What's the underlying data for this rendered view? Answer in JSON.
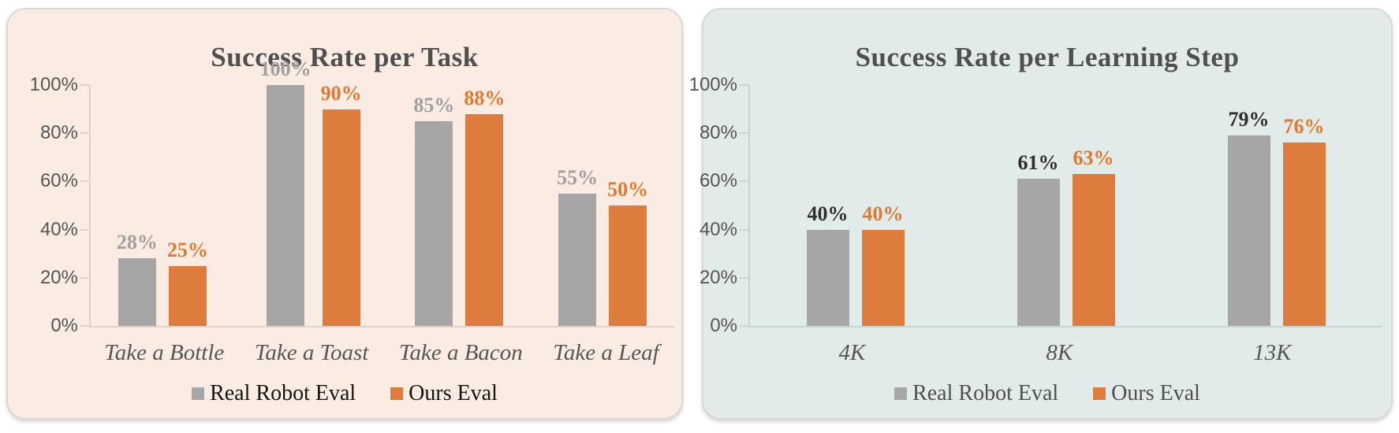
{
  "chart_data": [
    {
      "type": "bar",
      "title": "Success Rate per Task",
      "categories": [
        "Take a Bottle",
        "Take a Toast",
        "Take a Bacon",
        "Take a Leaf"
      ],
      "series": [
        {
          "name": "Real Robot Eval",
          "values": [
            28,
            100,
            85,
            55
          ],
          "labels": [
            "28%",
            "100%",
            "85%",
            "55%"
          ]
        },
        {
          "name": "Ours Eval",
          "values": [
            25,
            90,
            88,
            50
          ],
          "labels": [
            "25%",
            "90%",
            "88%",
            "50%"
          ]
        }
      ],
      "ylim": [
        0,
        100
      ],
      "y_ticks": [
        "100%",
        "80%",
        "60%",
        "40%",
        "20%",
        "0%"
      ],
      "grid": false,
      "legend_position": "bottom",
      "legend": [
        {
          "label": "Real Robot Eval",
          "swatch": "#A6A6A6"
        },
        {
          "label": "Ours Eval",
          "swatch": "#DE7C3E"
        }
      ],
      "colors": {
        "panel_bg": "#FAECE2",
        "bar_real": "#A6A6A6",
        "bar_ours": "#DE7C3E",
        "label_real": "#A0A0A0",
        "label_ours": "#E0792F",
        "legend_text": "#141414",
        "title_text": "#4F4F4F"
      }
    },
    {
      "type": "bar",
      "title": "Success Rate per Learning Step",
      "categories": [
        "4K",
        "8K",
        "13K"
      ],
      "series": [
        {
          "name": "Real Robot Eval",
          "values": [
            40,
            61,
            79
          ],
          "labels": [
            "40%",
            "61%",
            "79%"
          ]
        },
        {
          "name": "Ours Eval",
          "values": [
            40,
            63,
            76
          ],
          "labels": [
            "40%",
            "63%",
            "76%"
          ]
        }
      ],
      "ylim": [
        0,
        100
      ],
      "y_ticks": [
        "100%",
        "80%",
        "60%",
        "40%",
        "20%",
        "0%"
      ],
      "grid": false,
      "legend_position": "bottom",
      "legend": [
        {
          "label": "Real Robot Eval",
          "swatch": "#A6A6A6"
        },
        {
          "label": "Ours Eval",
          "swatch": "#DE7C3E"
        }
      ],
      "colors": {
        "panel_bg": "#E1ECEA",
        "bar_real": "#A6A6A6",
        "bar_ours": "#DE7C3E",
        "label_real": "#2E2E2E",
        "label_ours": "#E0792F",
        "legend_text": "#4F4F4F",
        "title_text": "#4F4F4F"
      }
    }
  ]
}
